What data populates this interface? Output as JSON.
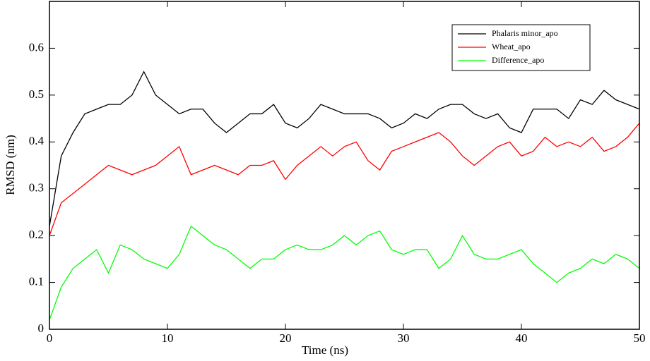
{
  "chart_data": {
    "type": "line",
    "xlabel": "Time (ns)",
    "ylabel": "RMSD (nm)",
    "x": [
      0,
      1,
      2,
      3,
      4,
      5,
      6,
      7,
      8,
      9,
      10,
      11,
      12,
      13,
      14,
      15,
      16,
      17,
      18,
      19,
      20,
      21,
      22,
      23,
      24,
      25,
      26,
      27,
      28,
      29,
      30,
      31,
      32,
      33,
      34,
      35,
      36,
      37,
      38,
      39,
      40,
      41,
      42,
      43,
      44,
      45,
      46,
      47,
      48,
      49,
      50
    ],
    "series": [
      {
        "name": "Phalaris minor_apo",
        "color": "#000000",
        "values": [
          0.22,
          0.37,
          0.42,
          0.46,
          0.47,
          0.48,
          0.48,
          0.5,
          0.55,
          0.5,
          0.48,
          0.46,
          0.47,
          0.47,
          0.44,
          0.42,
          0.44,
          0.46,
          0.46,
          0.48,
          0.44,
          0.43,
          0.45,
          0.48,
          0.47,
          0.46,
          0.46,
          0.46,
          0.45,
          0.43,
          0.44,
          0.46,
          0.45,
          0.47,
          0.48,
          0.48,
          0.46,
          0.45,
          0.46,
          0.43,
          0.42,
          0.47,
          0.47,
          0.47,
          0.45,
          0.49,
          0.48,
          0.51,
          0.49,
          0.48,
          0.47
        ]
      },
      {
        "name": "Wheat_apo",
        "color": "#ff0000",
        "values": [
          0.2,
          0.27,
          0.29,
          0.31,
          0.33,
          0.35,
          0.34,
          0.33,
          0.34,
          0.35,
          0.37,
          0.39,
          0.33,
          0.34,
          0.35,
          0.34,
          0.33,
          0.35,
          0.35,
          0.36,
          0.32,
          0.35,
          0.37,
          0.39,
          0.37,
          0.39,
          0.4,
          0.36,
          0.34,
          0.38,
          0.39,
          0.4,
          0.41,
          0.42,
          0.4,
          0.37,
          0.35,
          0.37,
          0.39,
          0.4,
          0.37,
          0.38,
          0.41,
          0.39,
          0.4,
          0.39,
          0.41,
          0.38,
          0.39,
          0.41,
          0.44
        ]
      },
      {
        "name": "Difference_apo",
        "color": "#00ff00",
        "values": [
          0.02,
          0.09,
          0.13,
          0.15,
          0.17,
          0.12,
          0.18,
          0.17,
          0.15,
          0.14,
          0.13,
          0.16,
          0.22,
          0.2,
          0.18,
          0.17,
          0.15,
          0.13,
          0.15,
          0.15,
          0.17,
          0.18,
          0.17,
          0.17,
          0.18,
          0.2,
          0.18,
          0.2,
          0.21,
          0.17,
          0.16,
          0.17,
          0.17,
          0.13,
          0.15,
          0.2,
          0.16,
          0.15,
          0.15,
          0.16,
          0.17,
          0.14,
          0.12,
          0.1,
          0.12,
          0.13,
          0.15,
          0.14,
          0.16,
          0.15,
          0.13
        ]
      }
    ],
    "xlim": [
      0,
      50
    ],
    "xticks": [
      0,
      10,
      20,
      30,
      40,
      50
    ],
    "ylim": [
      0,
      0.7
    ],
    "yticks": [
      0,
      0.1,
      0.2,
      0.3,
      0.4,
      0.5,
      0.6
    ],
    "legend": "upper right"
  }
}
